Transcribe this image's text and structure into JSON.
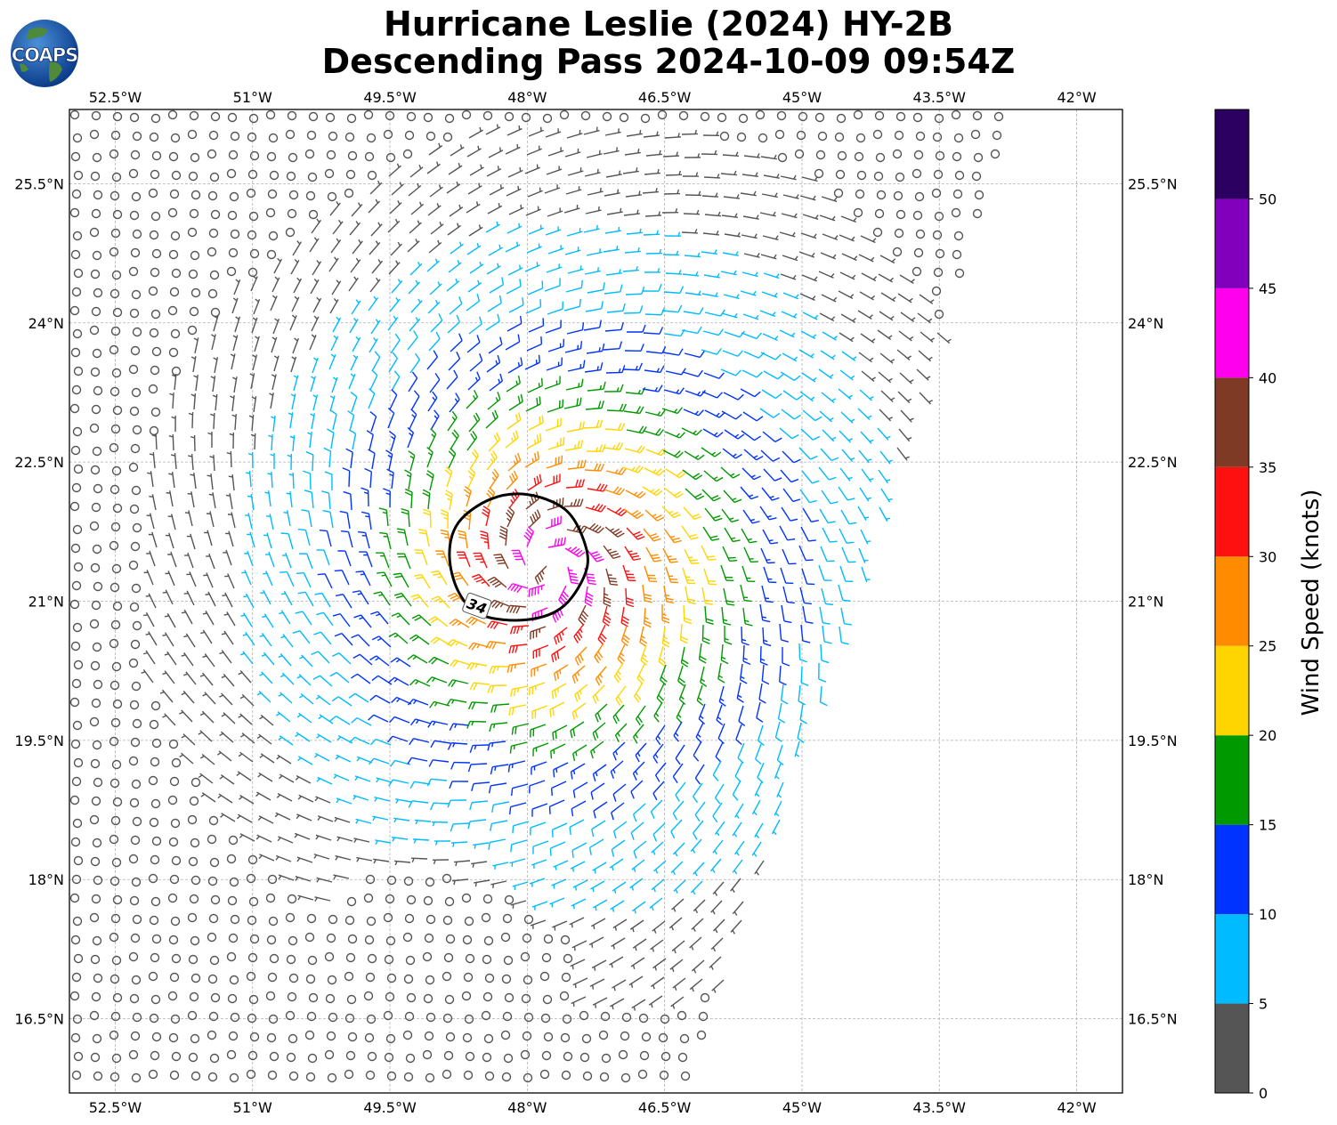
{
  "title": {
    "line1": "Hurricane Leslie (2024) HY-2B",
    "line2": "Descending Pass 2024-10-09 09:54Z"
  },
  "logo": {
    "text": "COAPS",
    "icon": "globe-logo-icon"
  },
  "map": {
    "lon_range": [
      -53.0,
      -41.5
    ],
    "lat_range": [
      15.7,
      26.3
    ],
    "lon_ticks": [
      {
        "value": -52.5,
        "label": "52.5°W"
      },
      {
        "value": -51.0,
        "label": "51°W"
      },
      {
        "value": -49.5,
        "label": "49.5°W"
      },
      {
        "value": -48.0,
        "label": "48°W"
      },
      {
        "value": -46.5,
        "label": "46.5°W"
      },
      {
        "value": -45.0,
        "label": "45°W"
      },
      {
        "value": -43.5,
        "label": "43.5°W"
      },
      {
        "value": -42.0,
        "label": "42°W"
      }
    ],
    "lat_ticks": [
      {
        "value": 25.5,
        "label": "25.5°N"
      },
      {
        "value": 24.0,
        "label": "24°N"
      },
      {
        "value": 22.5,
        "label": "22.5°N"
      },
      {
        "value": 21.0,
        "label": "21°N"
      },
      {
        "value": 19.5,
        "label": "19.5°N"
      },
      {
        "value": 18.0,
        "label": "18°N"
      },
      {
        "value": 16.5,
        "label": "16.5°N"
      }
    ],
    "storm_center": {
      "lon": -47.8,
      "lat": 21.4
    },
    "contour_label": "34",
    "contour_ring": [
      {
        "lon": -48.0,
        "lat": 22.15
      },
      {
        "lon": -47.6,
        "lat": 22.0
      },
      {
        "lon": -47.4,
        "lat": 21.7
      },
      {
        "lon": -47.35,
        "lat": 21.35
      },
      {
        "lon": -47.6,
        "lat": 20.95
      },
      {
        "lon": -48.0,
        "lat": 20.8
      },
      {
        "lon": -48.5,
        "lat": 20.85
      },
      {
        "lon": -48.75,
        "lat": 21.1
      },
      {
        "lon": -48.85,
        "lat": 21.5
      },
      {
        "lon": -48.75,
        "lat": 21.85
      },
      {
        "lon": -48.4,
        "lat": 22.1
      }
    ],
    "swath_edge": [
      {
        "lon": -42.7,
        "lat": 26.2
      },
      {
        "lon": -46.2,
        "lat": 15.8
      }
    ]
  },
  "colorbar": {
    "label": "Wind Speed (knots)",
    "bounds": [
      0,
      5,
      10,
      15,
      20,
      25,
      30,
      35,
      40,
      45,
      50,
      55
    ],
    "tick_labels": [
      "0",
      "5",
      "10",
      "15",
      "20",
      "25",
      "30",
      "35",
      "40",
      "45",
      "50"
    ],
    "colors": [
      "#555555",
      "#00bbff",
      "#0033ff",
      "#009900",
      "#ffd500",
      "#ff8c00",
      "#ff1010",
      "#7f3a25",
      "#ff00ee",
      "#8000bb",
      "#2b0060"
    ]
  }
}
